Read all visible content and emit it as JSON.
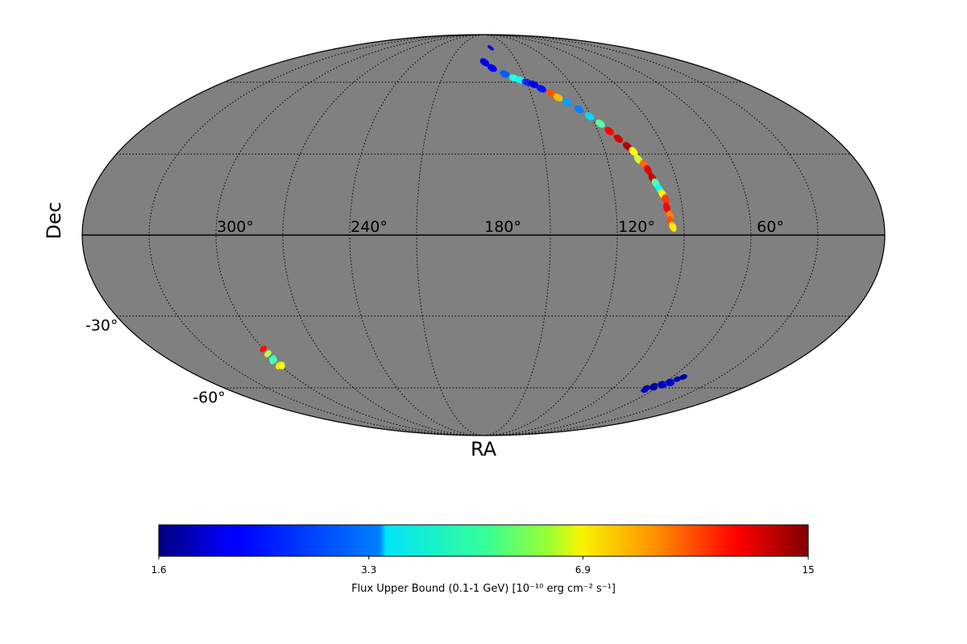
{
  "chart_data": {
    "type": "heatmap",
    "projection": "mollweide",
    "map_background_color": "#808080",
    "colormap": "jet",
    "grid": true,
    "title": "",
    "xlabel": "RA",
    "ylabel": "Dec",
    "ra_tick_labels": [
      {
        "ra": 300,
        "label": "300°"
      },
      {
        "ra": 240,
        "label": "240°"
      },
      {
        "ra": 180,
        "label": "180°"
      },
      {
        "ra": 120,
        "label": "120°"
      },
      {
        "ra": 60,
        "label": "60°"
      }
    ],
    "dec_tick_labels": [
      {
        "dec": -30,
        "label": "-30°"
      },
      {
        "dec": -60,
        "label": "-60°"
      }
    ],
    "colorbar": {
      "label": "Flux Upper Bound (0.1-1 GeV) [10⁻¹⁰ erg cm⁻² s⁻¹]",
      "ticks": [
        {
          "value": 1.6,
          "label": "1.6"
        },
        {
          "value": 3.3,
          "label": "3.3"
        },
        {
          "value": 6.9,
          "label": "6.9"
        },
        {
          "value": 15,
          "label": "15"
        }
      ],
      "min": 1.6,
      "max": 15,
      "scale": "log",
      "placement": "bottom"
    },
    "regions": [
      {
        "name": "arc",
        "points": [
          {
            "ra": 179,
            "dec": 70,
            "flux": 2.0
          },
          {
            "ra": 173,
            "dec": 67,
            "flux": 2.1
          },
          {
            "ra": 164,
            "dec": 64,
            "flux": 2.6
          },
          {
            "ra": 158,
            "dec": 62,
            "flux": 4.0
          },
          {
            "ra": 154,
            "dec": 61,
            "flux": 3.8
          },
          {
            "ra": 150,
            "dec": 60,
            "flux": 2.3
          },
          {
            "ra": 146,
            "dec": 59,
            "flux": 2.0
          },
          {
            "ra": 142,
            "dec": 57,
            "flux": 2.2
          },
          {
            "ra": 137,
            "dec": 55,
            "flux": 9.5
          },
          {
            "ra": 134,
            "dec": 53,
            "flux": 7.5
          },
          {
            "ra": 130,
            "dec": 51,
            "flux": 3.0
          },
          {
            "ra": 125,
            "dec": 48,
            "flux": 2.8
          },
          {
            "ra": 121,
            "dec": 45,
            "flux": 3.4
          },
          {
            "ra": 117,
            "dec": 42,
            "flux": 4.5
          },
          {
            "ra": 114,
            "dec": 39,
            "flux": 11.5
          },
          {
            "ra": 111,
            "dec": 36,
            "flux": 12.5
          },
          {
            "ra": 108,
            "dec": 33,
            "flux": 13.5
          },
          {
            "ra": 106,
            "dec": 31,
            "flux": 6.5
          },
          {
            "ra": 105,
            "dec": 28,
            "flux": 5.8
          },
          {
            "ra": 103,
            "dec": 26,
            "flux": 9.0
          },
          {
            "ra": 102,
            "dec": 24,
            "flux": 12.0
          },
          {
            "ra": 101,
            "dec": 21,
            "flux": 13.0
          },
          {
            "ra": 100,
            "dec": 19,
            "flux": 4.5
          },
          {
            "ra": 99,
            "dec": 17,
            "flux": 3.8
          },
          {
            "ra": 98,
            "dec": 15,
            "flux": 6.5
          },
          {
            "ra": 97,
            "dec": 13,
            "flux": 10.0
          },
          {
            "ra": 97,
            "dec": 10,
            "flux": 11.5
          },
          {
            "ra": 96,
            "dec": 7,
            "flux": 8.5
          },
          {
            "ra": 96,
            "dec": 5,
            "flux": 9.5
          },
          {
            "ra": 95,
            "dec": 3,
            "flux": 6.8
          }
        ]
      },
      {
        "name": "north-patch",
        "points": [
          {
            "ra": 172,
            "dec": 79,
            "flux": 1.8
          },
          {
            "ra": 170,
            "dec": 78,
            "flux": 2.0
          }
        ]
      },
      {
        "name": "south-west-patch",
        "points": [
          {
            "ra": 300,
            "dec": -43,
            "flux": 11.0
          },
          {
            "ra": 300,
            "dec": -45,
            "flux": 5.5
          },
          {
            "ra": 300,
            "dec": -47,
            "flux": 4.0
          },
          {
            "ra": 301,
            "dec": -48,
            "flux": 4.4
          },
          {
            "ra": 301,
            "dec": -50,
            "flux": 6.8
          },
          {
            "ra": 299,
            "dec": -50,
            "flux": 6.2
          }
        ]
      },
      {
        "name": "south-east-patch",
        "points": [
          {
            "ra": 67,
            "dec": -60,
            "flux": 1.7
          },
          {
            "ra": 64,
            "dec": -59,
            "flux": 1.8
          },
          {
            "ra": 61,
            "dec": -58,
            "flux": 1.9
          },
          {
            "ra": 58,
            "dec": -57,
            "flux": 1.9
          },
          {
            "ra": 55,
            "dec": -56,
            "flux": 1.8
          },
          {
            "ra": 53,
            "dec": -55,
            "flux": 1.7
          },
          {
            "ra": 66,
            "dec": -61,
            "flux": 1.8
          },
          {
            "ra": 62,
            "dec": -60,
            "flux": 1.7
          },
          {
            "ra": 58,
            "dec": -59,
            "flux": 1.8
          },
          {
            "ra": 55,
            "dec": -58,
            "flux": 1.9
          }
        ]
      }
    ]
  }
}
